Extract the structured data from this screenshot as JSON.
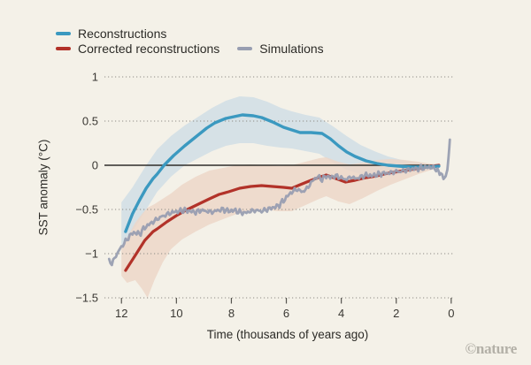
{
  "page": {
    "watermark": "©nature",
    "background": "#f4f1e8"
  },
  "legend": {
    "items": [
      {
        "label": "Reconstructions",
        "color": "#3b99c0"
      },
      {
        "label": "Corrected reconstructions",
        "color": "#b23229"
      },
      {
        "label": "Simulations",
        "color": "#989eb1"
      }
    ]
  },
  "chart_data": {
    "type": "line",
    "title": "",
    "xlabel": "Time (thousands of years ago)",
    "ylabel": "SST anomaly (°C)",
    "x_axis_reversed": true,
    "xlim": [
      12.62,
      -0.07
    ],
    "ylim": [
      -1.5,
      1
    ],
    "x_ticks": [
      12,
      10,
      8,
      6,
      4,
      2,
      0
    ],
    "x_tick_labels": [
      "12",
      "10",
      "8",
      "6",
      "4",
      "2",
      "0"
    ],
    "y_ticks": [
      1,
      0.5,
      0,
      -0.5,
      -1,
      -1.5
    ],
    "y_tick_labels": [
      "1",
      "0.5",
      "0",
      "−0.5",
      "−1",
      "−1.5"
    ],
    "grid": "dotted-horizontal",
    "zero_line": true,
    "legend_position": "top-left",
    "colors": {
      "grid": "#8f8d87",
      "zero_line": "#2f2e2a",
      "tick": "#55534e",
      "tick_label": "#3a3833"
    },
    "series": [
      {
        "id": "reconstructions",
        "name": "Reconstructions",
        "color": "#3b99c0",
        "band_color": "#d6e1e6",
        "band_opacity": 1,
        "line_width": 3.4,
        "points": [
          [
            11.85,
            -0.75
          ],
          [
            11.6,
            -0.55
          ],
          [
            11.35,
            -0.4
          ],
          [
            11.1,
            -0.26
          ],
          [
            10.85,
            -0.15
          ],
          [
            10.7,
            -0.1
          ],
          [
            10.45,
            0.0
          ],
          [
            10.1,
            0.11
          ],
          [
            9.7,
            0.22
          ],
          [
            9.3,
            0.32
          ],
          [
            8.9,
            0.42
          ],
          [
            8.6,
            0.48
          ],
          [
            8.2,
            0.53
          ],
          [
            7.9,
            0.55
          ],
          [
            7.6,
            0.57
          ],
          [
            7.2,
            0.56
          ],
          [
            6.9,
            0.54
          ],
          [
            6.5,
            0.49
          ],
          [
            6.1,
            0.43
          ],
          [
            5.8,
            0.4
          ],
          [
            5.5,
            0.37
          ],
          [
            5.1,
            0.37
          ],
          [
            4.7,
            0.36
          ],
          [
            4.4,
            0.3
          ],
          [
            4.1,
            0.22
          ],
          [
            3.8,
            0.15
          ],
          [
            3.5,
            0.1
          ],
          [
            3.1,
            0.05
          ],
          [
            2.7,
            0.02
          ],
          [
            2.3,
            0.0
          ],
          [
            1.9,
            -0.01
          ],
          [
            1.4,
            -0.02
          ],
          [
            0.9,
            -0.02
          ],
          [
            0.45,
            -0.01
          ]
        ],
        "band": {
          "t": [
            12.0,
            11.6,
            11.1,
            10.7,
            10.2,
            9.7,
            9.2,
            8.7,
            8.2,
            7.7,
            7.2,
            6.7,
            6.2,
            5.8,
            5.3,
            4.8,
            4.3,
            3.8,
            3.3,
            2.8,
            2.3,
            1.8,
            1.3,
            0.8,
            0.45
          ],
          "upper": [
            -0.42,
            -0.25,
            0.0,
            0.18,
            0.33,
            0.45,
            0.55,
            0.65,
            0.73,
            0.78,
            0.77,
            0.72,
            0.65,
            0.61,
            0.57,
            0.54,
            0.44,
            0.33,
            0.23,
            0.16,
            0.1,
            0.06,
            0.03,
            0.01,
            0.0
          ],
          "lower": [
            -0.92,
            -0.75,
            -0.5,
            -0.3,
            -0.13,
            0.0,
            0.08,
            0.16,
            0.22,
            0.25,
            0.25,
            0.22,
            0.2,
            0.19,
            0.16,
            0.13,
            0.03,
            -0.05,
            -0.1,
            -0.12,
            -0.12,
            -0.1,
            -0.07,
            -0.05,
            -0.03
          ]
        }
      },
      {
        "id": "corrected-reconstructions",
        "name": "Corrected reconstructions",
        "color": "#b23229",
        "band_color": "#edd5c7",
        "band_opacity": 0.82,
        "line_width": 3.2,
        "points": [
          [
            11.85,
            -1.19
          ],
          [
            11.5,
            -1.02
          ],
          [
            11.15,
            -0.85
          ],
          [
            10.85,
            -0.75
          ],
          [
            10.7,
            -0.72
          ],
          [
            10.35,
            -0.64
          ],
          [
            10.0,
            -0.57
          ],
          [
            9.6,
            -0.5
          ],
          [
            9.2,
            -0.44
          ],
          [
            8.8,
            -0.38
          ],
          [
            8.45,
            -0.33
          ],
          [
            8.1,
            -0.3
          ],
          [
            7.7,
            -0.26
          ],
          [
            7.3,
            -0.24
          ],
          [
            6.9,
            -0.23
          ],
          [
            6.5,
            -0.24
          ],
          [
            6.1,
            -0.25
          ],
          [
            5.8,
            -0.26
          ],
          [
            5.5,
            -0.22
          ],
          [
            5.1,
            -0.17
          ],
          [
            4.75,
            -0.13
          ],
          [
            4.55,
            -0.11
          ],
          [
            4.2,
            -0.15
          ],
          [
            3.85,
            -0.19
          ],
          [
            3.5,
            -0.17
          ],
          [
            3.1,
            -0.14
          ],
          [
            2.7,
            -0.12
          ],
          [
            2.3,
            -0.09
          ],
          [
            1.9,
            -0.07
          ],
          [
            1.5,
            -0.05
          ],
          [
            1.1,
            -0.03
          ],
          [
            0.7,
            -0.01
          ],
          [
            0.45,
            0.0
          ]
        ],
        "band": {
          "t": [
            12.0,
            11.8,
            11.5,
            11.25,
            11.05,
            10.8,
            10.5,
            10.2,
            9.8,
            9.3,
            8.8,
            8.3,
            7.8,
            7.3,
            6.8,
            6.3,
            5.8,
            5.3,
            4.8,
            4.55,
            4.1,
            3.7,
            3.2,
            2.7,
            2.2,
            1.7,
            1.2,
            0.8,
            0.45
          ],
          "upper": [
            -0.95,
            -0.82,
            -0.65,
            -0.55,
            -0.48,
            -0.44,
            -0.38,
            -0.32,
            -0.22,
            -0.13,
            -0.06,
            -0.03,
            0.0,
            0.01,
            0.0,
            -0.01,
            0.0,
            0.04,
            0.08,
            0.09,
            0.04,
            0.01,
            0.03,
            0.06,
            0.07,
            0.06,
            0.04,
            0.02,
            0.01
          ],
          "lower": [
            -1.25,
            -1.33,
            -1.3,
            -1.4,
            -1.5,
            -1.3,
            -1.1,
            -0.95,
            -0.84,
            -0.75,
            -0.67,
            -0.61,
            -0.55,
            -0.51,
            -0.5,
            -0.52,
            -0.52,
            -0.45,
            -0.38,
            -0.35,
            -0.41,
            -0.44,
            -0.37,
            -0.29,
            -0.22,
            -0.16,
            -0.1,
            -0.06,
            -0.03
          ]
        }
      },
      {
        "id": "simulations",
        "name": "Simulations",
        "color": "#989eb1",
        "line_width": 2.8,
        "noisy": true,
        "points": [
          [
            12.45,
            -1.07
          ],
          [
            12.35,
            -1.12
          ],
          [
            12.25,
            -1.05
          ],
          [
            12.1,
            -0.97
          ],
          [
            11.95,
            -0.9
          ],
          [
            11.8,
            -0.84
          ],
          [
            11.65,
            -0.78
          ],
          [
            11.5,
            -0.76
          ],
          [
            11.35,
            -0.78
          ],
          [
            11.2,
            -0.72
          ],
          [
            11.05,
            -0.68
          ],
          [
            10.9,
            -0.65
          ],
          [
            10.75,
            -0.62
          ],
          [
            10.6,
            -0.59
          ],
          [
            10.45,
            -0.57
          ],
          [
            10.3,
            -0.55
          ],
          [
            10.1,
            -0.53
          ],
          [
            9.9,
            -0.52
          ],
          [
            9.7,
            -0.51
          ],
          [
            9.5,
            -0.52
          ],
          [
            9.3,
            -0.53
          ],
          [
            9.1,
            -0.51
          ],
          [
            8.9,
            -0.52
          ],
          [
            8.7,
            -0.53
          ],
          [
            8.5,
            -0.51
          ],
          [
            8.3,
            -0.5
          ],
          [
            8.1,
            -0.52
          ],
          [
            7.9,
            -0.51
          ],
          [
            7.7,
            -0.53
          ],
          [
            7.5,
            -0.54
          ],
          [
            7.3,
            -0.52
          ],
          [
            7.1,
            -0.51
          ],
          [
            6.9,
            -0.52
          ],
          [
            6.7,
            -0.5
          ],
          [
            6.5,
            -0.48
          ],
          [
            6.3,
            -0.46
          ],
          [
            6.1,
            -0.4
          ],
          [
            5.9,
            -0.33
          ],
          [
            5.75,
            -0.29
          ],
          [
            5.6,
            -0.27
          ],
          [
            5.45,
            -0.3
          ],
          [
            5.3,
            -0.28
          ],
          [
            5.15,
            -0.22
          ],
          [
            5.0,
            -0.16
          ],
          [
            4.85,
            -0.13
          ],
          [
            4.7,
            -0.16
          ],
          [
            4.55,
            -0.12
          ],
          [
            4.4,
            -0.14
          ],
          [
            4.25,
            -0.12
          ],
          [
            4.1,
            -0.13
          ],
          [
            3.95,
            -0.15
          ],
          [
            3.8,
            -0.16
          ],
          [
            3.65,
            -0.13
          ],
          [
            3.5,
            -0.15
          ],
          [
            3.35,
            -0.14
          ],
          [
            3.2,
            -0.12
          ],
          [
            3.05,
            -0.11
          ],
          [
            2.9,
            -0.12
          ],
          [
            2.75,
            -0.11
          ],
          [
            2.6,
            -0.1
          ],
          [
            2.45,
            -0.09
          ],
          [
            2.3,
            -0.09
          ],
          [
            2.15,
            -0.08
          ],
          [
            2.0,
            -0.07
          ],
          [
            1.85,
            -0.07
          ],
          [
            1.7,
            -0.06
          ],
          [
            1.55,
            -0.05
          ],
          [
            1.4,
            -0.04
          ],
          [
            1.25,
            -0.04
          ],
          [
            1.1,
            -0.03
          ],
          [
            0.95,
            -0.03
          ],
          [
            0.8,
            -0.02
          ],
          [
            0.65,
            -0.03
          ],
          [
            0.5,
            -0.05
          ],
          [
            0.38,
            -0.1
          ],
          [
            0.28,
            -0.14
          ],
          [
            0.2,
            -0.13
          ],
          [
            0.14,
            -0.05
          ],
          [
            0.1,
            0.08
          ],
          [
            0.07,
            0.2
          ],
          [
            0.05,
            0.29
          ]
        ]
      }
    ]
  }
}
